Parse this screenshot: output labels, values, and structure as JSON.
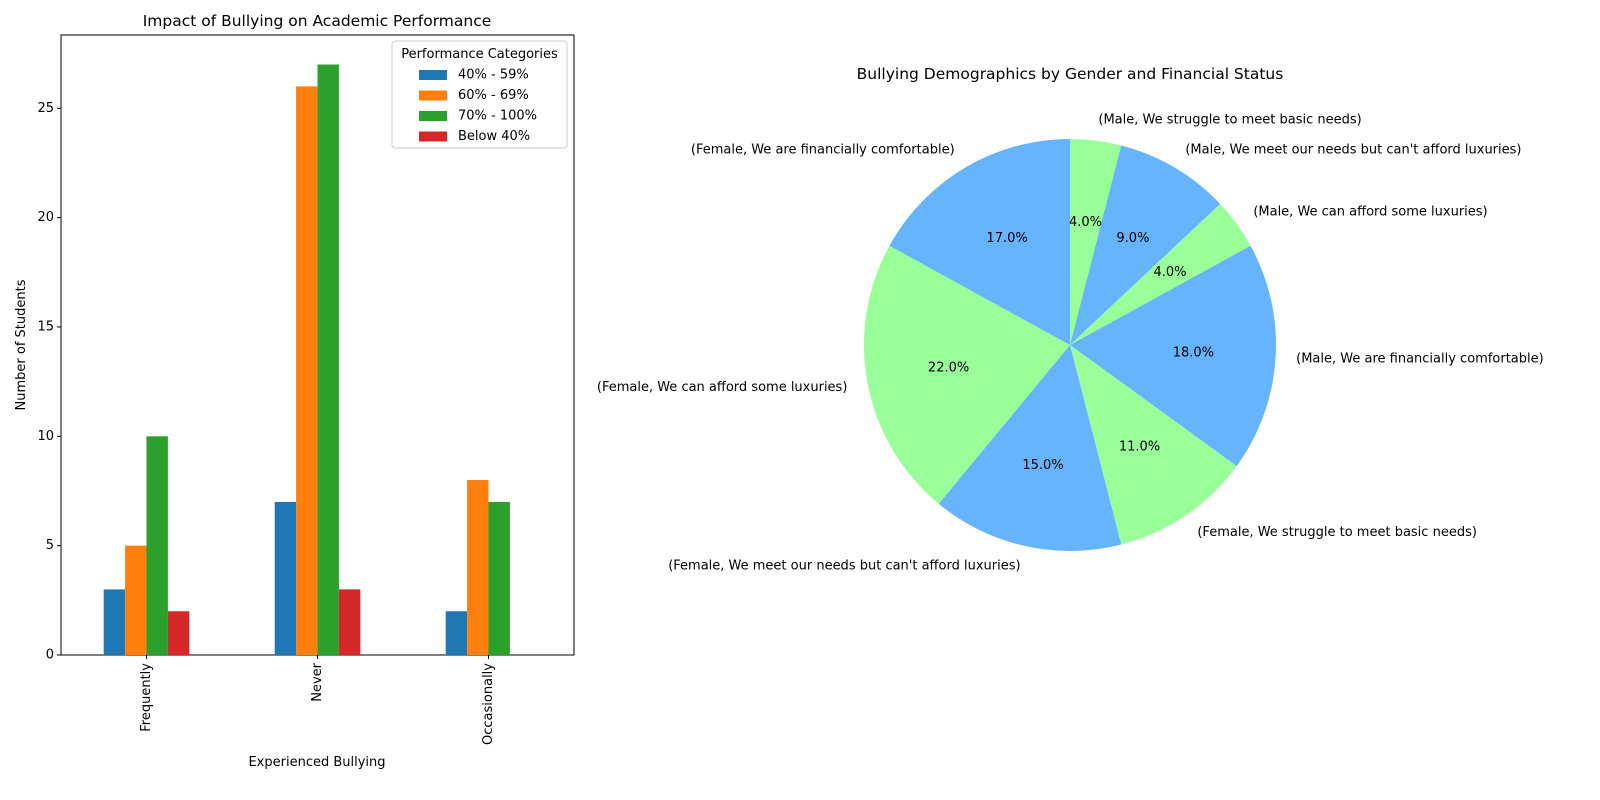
{
  "chart_data": [
    {
      "type": "bar",
      "title": "Impact of Bullying on Academic Performance",
      "xlabel": "Experienced Bullying",
      "ylabel": "Number of Students",
      "categories": [
        "Frequently",
        "Never",
        "Occasionally"
      ],
      "series": [
        {
          "name": "40% - 59%",
          "values": [
            3,
            7,
            2
          ],
          "color": "#1f77b4"
        },
        {
          "name": "60% - 69%",
          "values": [
            5,
            26,
            8
          ],
          "color": "#ff7f0e"
        },
        {
          "name": "70% - 100%",
          "values": [
            10,
            27,
            7
          ],
          "color": "#2ca02c"
        },
        {
          "name": "Below 40%",
          "values": [
            2,
            3,
            0
          ],
          "color": "#d62728"
        }
      ],
      "ylim": [
        0,
        28.35
      ],
      "yticks": [
        0,
        5,
        10,
        15,
        20,
        25
      ],
      "legend": {
        "title": "Performance Categories",
        "placement": "top-right"
      },
      "grid": false
    },
    {
      "type": "pie",
      "title": "Bullying Demographics by Gender and Financial Status",
      "start_angle_deg": 90,
      "direction": "clockwise",
      "slices": [
        {
          "label": "(Male, We struggle to meet basic needs)",
          "value": 4.0,
          "pct": "4.0%",
          "color": "#99ff99"
        },
        {
          "label": "(Male, We meet our needs but can't afford luxuries)",
          "value": 9.0,
          "pct": "9.0%",
          "color": "#66b3ff"
        },
        {
          "label": "(Male, We can afford some luxuries)",
          "value": 4.0,
          "pct": "4.0%",
          "color": "#99ff99"
        },
        {
          "label": "(Male, We are financially comfortable)",
          "value": 18.0,
          "pct": "18.0%",
          "color": "#66b3ff"
        },
        {
          "label": "(Female, We struggle to meet basic needs)",
          "value": 11.0,
          "pct": "11.0%",
          "color": "#99ff99"
        },
        {
          "label": "(Female, We meet our needs but can't afford luxuries)",
          "value": 15.0,
          "pct": "15.0%",
          "color": "#66b3ff"
        },
        {
          "label": "(Female, We can afford some luxuries)",
          "value": 22.0,
          "pct": "22.0%",
          "color": "#99ff99"
        },
        {
          "label": "(Female, We are financially comfortable)",
          "value": 17.0,
          "pct": "17.0%",
          "color": "#66b3ff"
        }
      ]
    }
  ]
}
